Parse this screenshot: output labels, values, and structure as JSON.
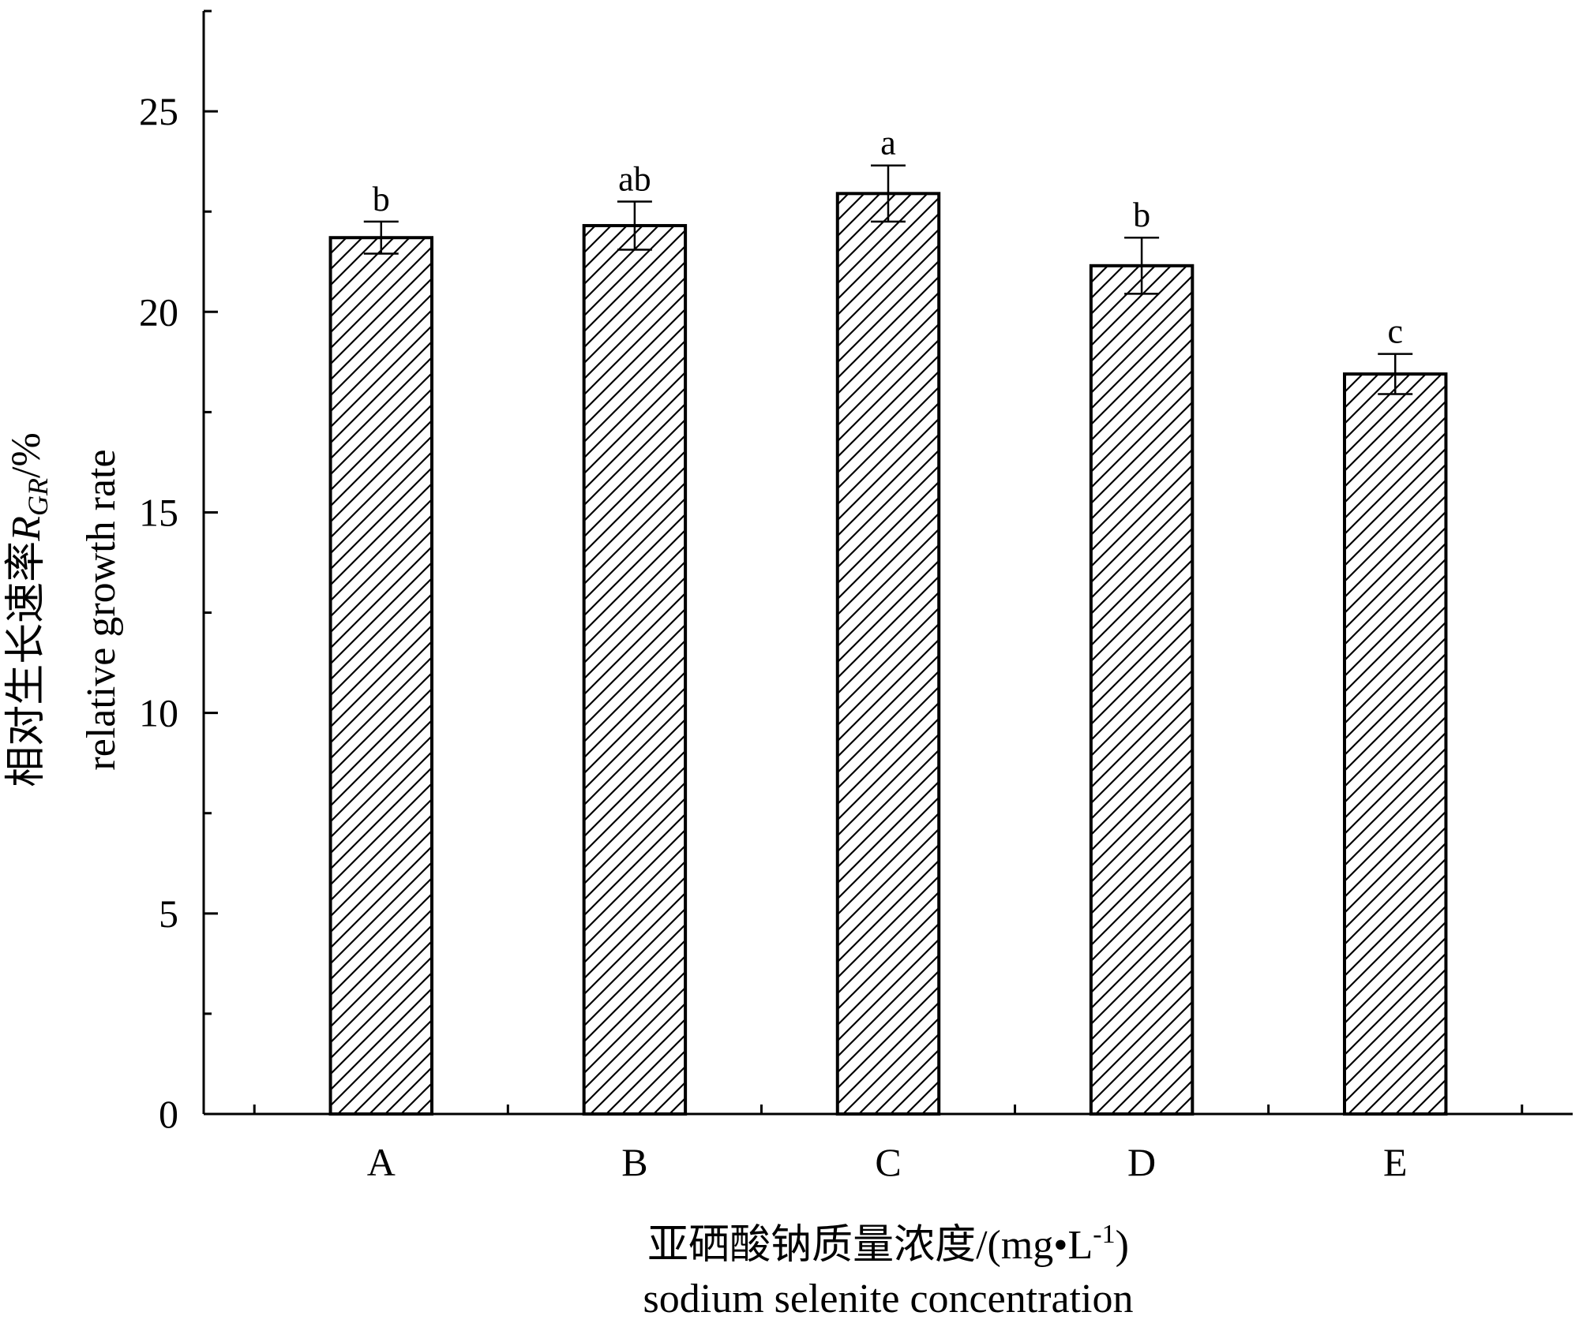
{
  "chart_data": {
    "type": "bar",
    "categories": [
      "A",
      "B",
      "C",
      "D",
      "E"
    ],
    "values": [
      21.85,
      22.15,
      22.95,
      21.15,
      18.45
    ],
    "errors": [
      0.4,
      0.6,
      0.7,
      0.7,
      0.5
    ],
    "significance": [
      "b",
      "ab",
      "a",
      "b",
      "c"
    ],
    "ylim": [
      0,
      27.5
    ],
    "yticks": [
      0,
      5,
      10,
      15,
      20,
      25
    ],
    "ylabel_cn_prefix": "相对生长速率",
    "ylabel_symbol": "R",
    "ylabel_subscript": "GR",
    "ylabel_unit": "/%",
    "ylabel_en": "relative growth rate",
    "xlabel_cn": "亚硒酸钠质量浓度/(mg•L",
    "xlabel_cn_sup": "-1",
    "xlabel_cn_close": ")",
    "xlabel_en": "sodium selenite concentration",
    "bar_fill": "hatched",
    "colors": {
      "ink": "#000000",
      "background": "#ffffff"
    }
  }
}
